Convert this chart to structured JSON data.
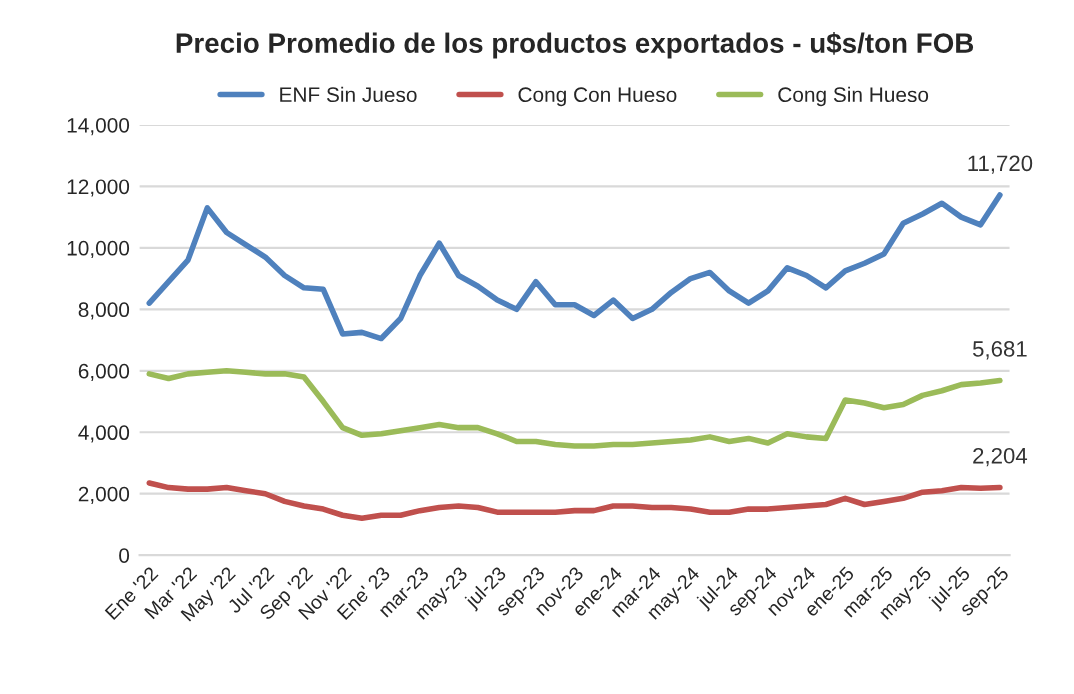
{
  "chart_data": {
    "type": "line",
    "title": "Precio Promedio de los productos exportados - u$s/ton FOB",
    "categories": [
      "Ene '22",
      null,
      "Mar '22",
      null,
      "May '22",
      null,
      "Jul '22",
      null,
      "Sep '22",
      null,
      "Nov '22",
      null,
      "Ene' 23",
      null,
      "mar-23",
      null,
      "may-23",
      null,
      "jul-23",
      null,
      "sep-23",
      null,
      "nov-23",
      null,
      "ene-24",
      null,
      "mar-24",
      null,
      "may-24",
      null,
      "jul-24",
      null,
      "sep-24",
      null,
      "nov-24",
      null,
      "ene-25",
      null,
      "mar-25",
      null,
      "may-25",
      null,
      "jul-25",
      null,
      "sep-25"
    ],
    "series": [
      {
        "name": "ENF Sin Jueso",
        "color": "#4f81bd",
        "values": [
          8200,
          8900,
          9600,
          11300,
          10500,
          10100,
          9700,
          9100,
          8700,
          8650,
          7200,
          7250,
          7050,
          7700,
          9100,
          10150,
          9100,
          8750,
          8300,
          8000,
          8900,
          8150,
          8150,
          7800,
          8300,
          7700,
          8000,
          8550,
          9000,
          9200,
          8600,
          8200,
          8600,
          9350,
          9100,
          8700,
          9250,
          9500,
          9800,
          10800,
          11100,
          11450,
          11000,
          10750,
          11720
        ],
        "value_labels": [
          null,
          null,
          null,
          null,
          null,
          null,
          null,
          null,
          null,
          null,
          null,
          null,
          null,
          null,
          null,
          null,
          null,
          null,
          null,
          null,
          null,
          null,
          null,
          null,
          null,
          null,
          null,
          null,
          null,
          null,
          null,
          null,
          null,
          null,
          null,
          null,
          null,
          null,
          null,
          null,
          null,
          null,
          null,
          null,
          "11,720"
        ]
      },
      {
        "name": "Cong Con Hueso",
        "color": "#c0504d",
        "values": [
          2350,
          2200,
          2150,
          2150,
          2200,
          2100,
          2000,
          1750,
          1600,
          1500,
          1300,
          1200,
          1300,
          1300,
          1450,
          1550,
          1600,
          1550,
          1400,
          1400,
          1400,
          1400,
          1450,
          1450,
          1600,
          1600,
          1550,
          1550,
          1500,
          1400,
          1400,
          1500,
          1500,
          1550,
          1600,
          1650,
          1850,
          1650,
          1750,
          1850,
          2050,
          2100,
          2200,
          2180,
          2204
        ],
        "value_labels": [
          null,
          null,
          null,
          null,
          null,
          null,
          null,
          null,
          null,
          null,
          null,
          null,
          null,
          null,
          null,
          null,
          null,
          null,
          null,
          null,
          null,
          null,
          null,
          null,
          null,
          null,
          null,
          null,
          null,
          null,
          null,
          null,
          null,
          null,
          null,
          null,
          null,
          null,
          null,
          null,
          null,
          null,
          null,
          null,
          "2,204"
        ]
      },
      {
        "name": "Cong Sin Hueso",
        "color": "#9bbb59",
        "values": [
          5900,
          5750,
          5900,
          5950,
          6000,
          5950,
          5900,
          5900,
          5800,
          5000,
          4150,
          3900,
          3950,
          4050,
          4150,
          4250,
          4150,
          4150,
          3950,
          3700,
          3700,
          3600,
          3550,
          3550,
          3600,
          3600,
          3650,
          3700,
          3750,
          3850,
          3700,
          3800,
          3650,
          3950,
          3850,
          3800,
          5050,
          4950,
          4800,
          4900,
          5200,
          5350,
          5550,
          5600,
          5681
        ],
        "value_labels": [
          null,
          null,
          null,
          null,
          null,
          null,
          null,
          null,
          null,
          null,
          null,
          null,
          null,
          null,
          null,
          null,
          null,
          null,
          null,
          null,
          null,
          null,
          null,
          null,
          null,
          null,
          null,
          null,
          null,
          null,
          null,
          null,
          null,
          null,
          null,
          null,
          null,
          null,
          null,
          null,
          null,
          null,
          null,
          null,
          "5,681"
        ]
      }
    ],
    "ylim": [
      0,
      14000
    ],
    "yticks": [
      {
        "value": 0,
        "label": "0"
      },
      {
        "value": 2000,
        "label": "2,000"
      },
      {
        "value": 4000,
        "label": "4,000"
      },
      {
        "value": 6000,
        "label": "6,000"
      },
      {
        "value": 8000,
        "label": "8,000"
      },
      {
        "value": 10000,
        "label": "10,000"
      },
      {
        "value": 12000,
        "label": "12,000"
      },
      {
        "value": 14000,
        "label": "14,000"
      }
    ],
    "grid": "y",
    "legend": "top",
    "marker": "none",
    "line_style": "solid"
  }
}
